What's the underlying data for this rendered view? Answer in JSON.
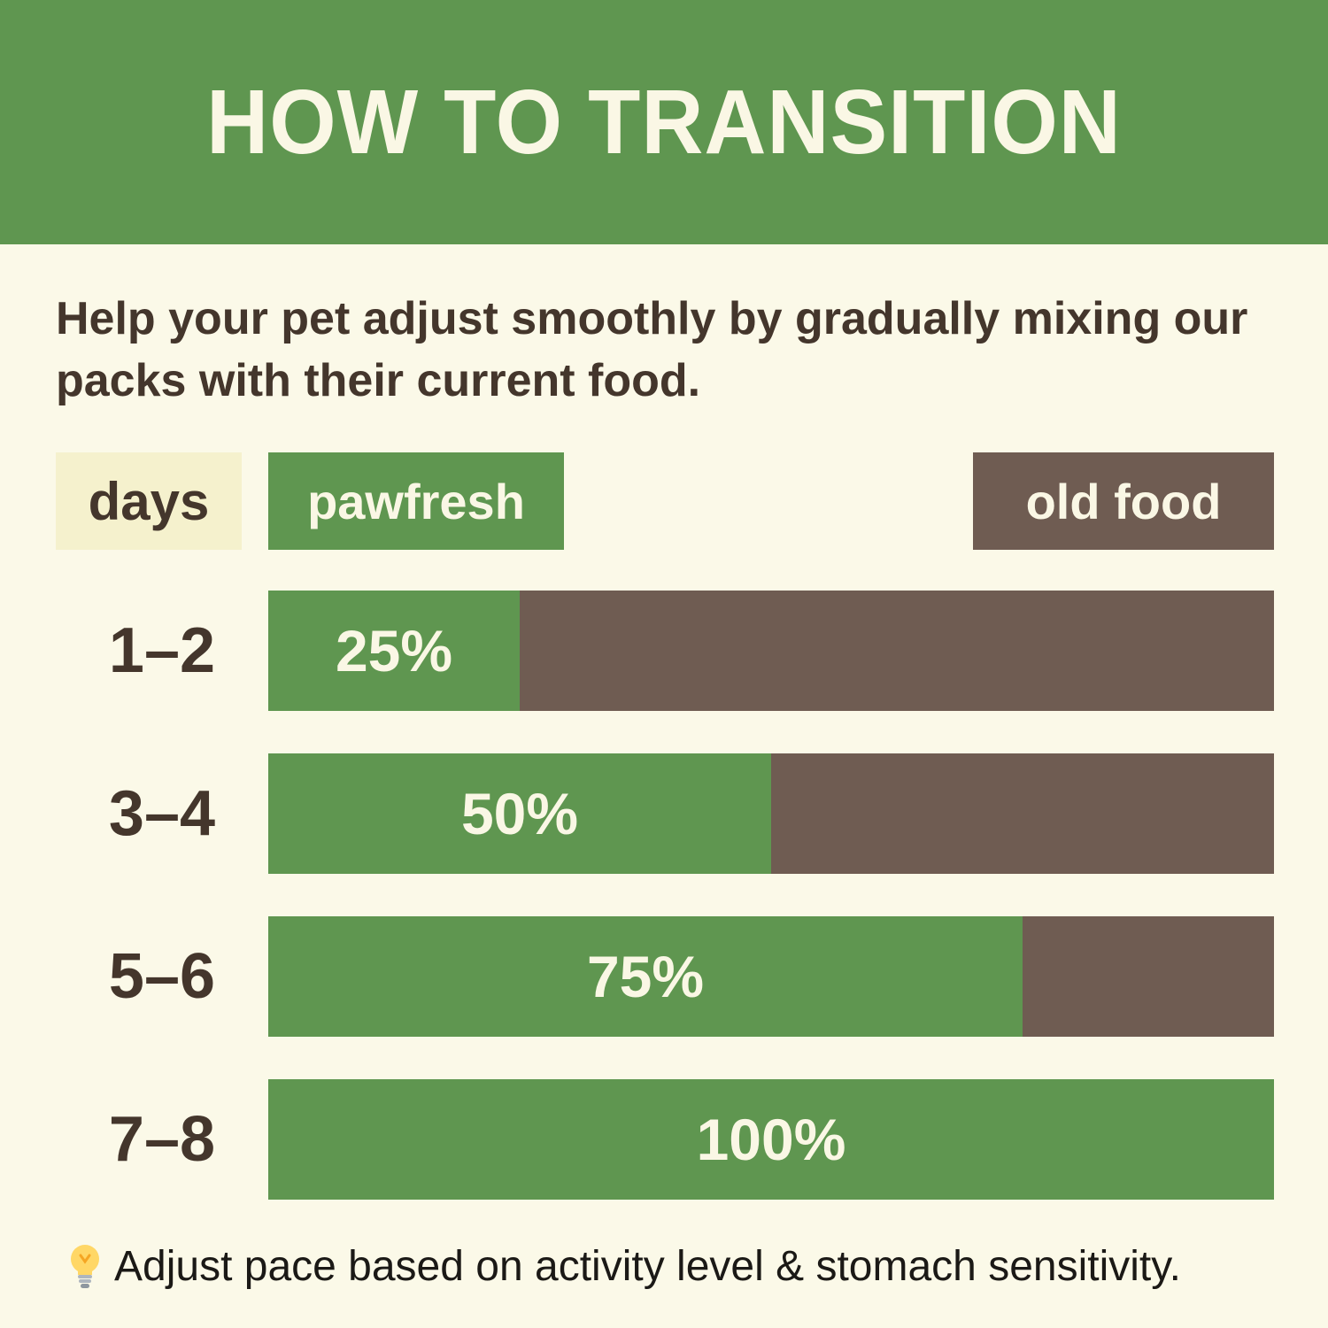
{
  "header": {
    "title": "HOW TO TRANSITION"
  },
  "subtitle": "Help your pet adjust smoothly by gradually mixing our packs with their current food.",
  "legend": {
    "days_label": "days",
    "pawfresh_label": "pawfresh",
    "old_food_label": "old food"
  },
  "rows": [
    {
      "days": "1–2",
      "pct": 25,
      "pct_label": "25%"
    },
    {
      "days": "3–4",
      "pct": 50,
      "pct_label": "50%"
    },
    {
      "days": "5–6",
      "pct": 75,
      "pct_label": "75%"
    },
    {
      "days": "7–8",
      "pct": 100,
      "pct_label": "100%"
    }
  ],
  "footer": {
    "icon": "lightbulb-emoji",
    "note": "Adjust pace based on activity level & stomach sensitivity."
  },
  "colors": {
    "header_green": "#5f9650",
    "bar_green": "#5f9650",
    "bar_brown": "#6f5c52",
    "background_cream": "#fbf9e8",
    "days_badge_cream": "#f5f1cd",
    "text_dark_brown": "#44362c",
    "text_cream": "#faf7e5",
    "footer_text_black": "#1b1916"
  },
  "chart_data": {
    "type": "bar",
    "orientation": "horizontal",
    "stacked": true,
    "title": "HOW TO TRANSITION",
    "categories": [
      "1–2",
      "3–4",
      "5–6",
      "7–8"
    ],
    "series": [
      {
        "name": "pawfresh",
        "values": [
          25,
          50,
          75,
          100
        ]
      },
      {
        "name": "old food",
        "values": [
          75,
          50,
          25,
          0
        ]
      }
    ],
    "value_labels": [
      "25%",
      "50%",
      "75%",
      "100%"
    ],
    "xlabel": "",
    "ylabel": "days",
    "xlim": [
      0,
      100
    ],
    "grid": false,
    "legend_position": "top"
  }
}
